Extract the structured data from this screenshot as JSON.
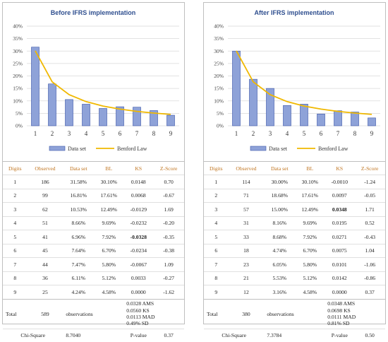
{
  "chart_data": [
    {
      "type": "bar",
      "title": "Before IFRS implementation",
      "categories": [
        "1",
        "2",
        "3",
        "4",
        "5",
        "6",
        "7",
        "8",
        "9"
      ],
      "series": [
        {
          "name": "Data set",
          "kind": "bar",
          "values": [
            31.58,
            16.81,
            10.53,
            8.66,
            6.96,
            7.64,
            7.47,
            6.11,
            4.24
          ]
        },
        {
          "name": "Benford Law",
          "kind": "line",
          "values": [
            30.1,
            17.61,
            12.49,
            9.69,
            7.92,
            6.7,
            5.8,
            5.12,
            4.58
          ]
        }
      ],
      "yticks": [
        "0%",
        "5%",
        "10%",
        "15%",
        "20%",
        "25%",
        "30%",
        "35%",
        "40%"
      ],
      "ylim": [
        0,
        40
      ],
      "legend": "bottom",
      "grid": true
    },
    {
      "type": "bar",
      "title": "After IFRS implementation",
      "categories": [
        "1",
        "2",
        "3",
        "4",
        "5",
        "6",
        "7",
        "8",
        "9"
      ],
      "series": [
        {
          "name": "Data set",
          "kind": "bar",
          "values": [
            30.0,
            18.68,
            15.0,
            8.16,
            8.68,
            4.74,
            6.05,
            5.53,
            3.16
          ]
        },
        {
          "name": "Benford Law",
          "kind": "line",
          "values": [
            30.1,
            17.61,
            12.49,
            9.69,
            7.92,
            6.7,
            5.8,
            5.12,
            4.58
          ]
        }
      ],
      "yticks": [
        "0%",
        "5%",
        "10%",
        "15%",
        "20%",
        "25%",
        "30%",
        "35%",
        "40%"
      ],
      "ylim": [
        0,
        40
      ],
      "legend": "bottom",
      "grid": true
    }
  ],
  "colors": {
    "bar": "#8ea2d8",
    "bar_edge": "#3b56a8",
    "line": "#f0b800",
    "grid": "#d9d9d9",
    "title": "#2f4f8f",
    "header": "#c0741f"
  },
  "tables": [
    {
      "headers": [
        "Digits",
        "Observed",
        "Data set",
        "BL",
        "KS",
        "Z-Score"
      ],
      "rows": [
        [
          "1",
          "186",
          "31.58%",
          "30.10%",
          "0.0148",
          "0.70"
        ],
        [
          "2",
          "99",
          "16.81%",
          "17.61%",
          "0.0068",
          "-0.67"
        ],
        [
          "3",
          "62",
          "10.53%",
          "12.49%",
          "-0.0129",
          "1.69"
        ],
        [
          "4",
          "51",
          "8.66%",
          "9.69%",
          "-0.0232",
          "-0.20"
        ],
        [
          "5",
          "41",
          "6.96%",
          "7.92%",
          "-0.0328",
          "-0.35"
        ],
        [
          "6",
          "45",
          "7.64%",
          "6.70%",
          "-0.0234",
          "-0.38"
        ],
        [
          "7",
          "44",
          "7.47%",
          "5.80%",
          "-0.0067",
          "1.09"
        ],
        [
          "8",
          "36",
          "6.11%",
          "5.12%",
          "0.0033",
          "-0.27"
        ],
        [
          "9",
          "25",
          "4.24%",
          "4.58%",
          "0.0000",
          "-1.62"
        ]
      ],
      "bold_ks_row": 4,
      "total_label": "Total",
      "total_value": "589",
      "observations_label": "observations",
      "stats": [
        {
          "value": "0.0328",
          "label": "AMS"
        },
        {
          "value": "0.0560",
          "label": "KS"
        },
        {
          "value": "0.0113",
          "label": "MAD"
        },
        {
          "value": "0.49%",
          "label": "SD"
        }
      ],
      "chi_label": "Chi-Square",
      "chi_value": "8.7040",
      "p_label": "P-value",
      "p_value": "0.37"
    },
    {
      "headers": [
        "Digits",
        "Observed",
        "Data set",
        "BL",
        "KS",
        "Z-Score"
      ],
      "rows": [
        [
          "1",
          "114",
          "30.00%",
          "30.10%",
          "-0.0010",
          "-1.24"
        ],
        [
          "2",
          "71",
          "18.68%",
          "17.61%",
          "0.0097",
          "-0.05"
        ],
        [
          "3",
          "57",
          "15.00%",
          "12.49%",
          "0.0348",
          "1.71"
        ],
        [
          "4",
          "31",
          "8.16%",
          "9.69%",
          "0.0195",
          "0.52"
        ],
        [
          "5",
          "33",
          "8.68%",
          "7.92%",
          "0.0271",
          "-0.43"
        ],
        [
          "6",
          "18",
          "4.74%",
          "6.70%",
          "0.0075",
          "1.04"
        ],
        [
          "7",
          "23",
          "6.05%",
          "5.80%",
          "0.0101",
          "-1.06"
        ],
        [
          "8",
          "21",
          "5.53%",
          "5.12%",
          "0.0142",
          "-0.86"
        ],
        [
          "9",
          "12",
          "3.16%",
          "4.58%",
          "0.0000",
          "0.37"
        ]
      ],
      "bold_ks_row": 2,
      "total_label": "Total",
      "total_value": "380",
      "observations_label": "observations",
      "stats": [
        {
          "value": "0.0348",
          "label": "AMS"
        },
        {
          "value": "0.0698",
          "label": "KS"
        },
        {
          "value": "0.0111",
          "label": "MAD"
        },
        {
          "value": "0.81%",
          "label": "SD"
        }
      ],
      "chi_label": "Chi-Square",
      "chi_value": "7.3784",
      "p_label": "P-value",
      "p_value": "0.50"
    }
  ]
}
